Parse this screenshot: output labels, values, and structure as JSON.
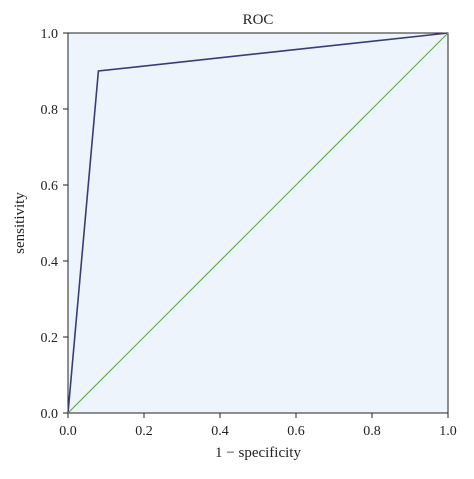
{
  "chart_data": {
    "type": "line",
    "title": "ROC",
    "xlabel": "1 − specificity",
    "ylabel": "sensitivity",
    "xlim": [
      0.0,
      1.0
    ],
    "ylim": [
      0.0,
      1.0
    ],
    "x_ticks": [
      "0.0",
      "0.2",
      "0.4",
      "0.6",
      "0.8",
      "1.0"
    ],
    "y_ticks": [
      "0.0",
      "0.2",
      "0.4",
      "0.6",
      "0.8",
      "1.0"
    ],
    "grid": false,
    "series": [
      {
        "x": [
          0.0,
          0.08,
          1.0
        ],
        "y": [
          0.0,
          0.9,
          1.0
        ],
        "color": "#3b3b7a"
      },
      {
        "x": [
          0.0,
          1.0
        ],
        "y": [
          0.0,
          1.0
        ],
        "color": "#5fa84a"
      }
    ],
    "colors": {
      "plot_background": "#eef4fc",
      "axis": "#222222"
    }
  }
}
